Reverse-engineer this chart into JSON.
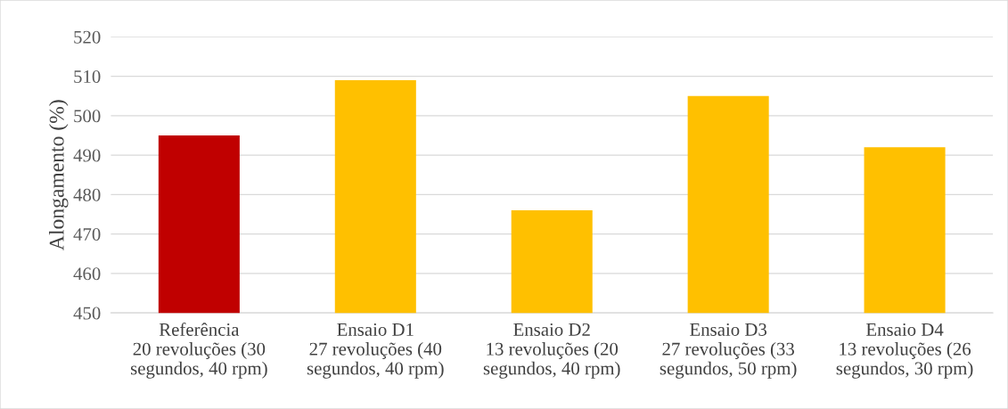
{
  "chart_data": {
    "type": "bar",
    "ylabel": "Alongamento (%)",
    "categories": [
      "Referência\n20 revoluções (30\nsegundos, 40 rpm)",
      "Ensaio D1\n27 revoluções (40\nsegundos, 40 rpm)",
      "Ensaio D2\n13 revoluções (20\nsegundos, 40 rpm)",
      "Ensaio D3\n27 revoluções (33\nsegundos, 50 rpm)",
      "Ensaio D4\n13 revoluções (26\nsegundos, 30 rpm)"
    ],
    "values": [
      495,
      509,
      476,
      505,
      492
    ],
    "colors": [
      "#c00000",
      "#ffc000",
      "#ffc000",
      "#ffc000",
      "#ffc000"
    ],
    "ylim": [
      450,
      520
    ],
    "yticks": [
      450,
      460,
      470,
      480,
      490,
      500,
      510,
      520
    ],
    "grid": "y",
    "legend": false
  }
}
